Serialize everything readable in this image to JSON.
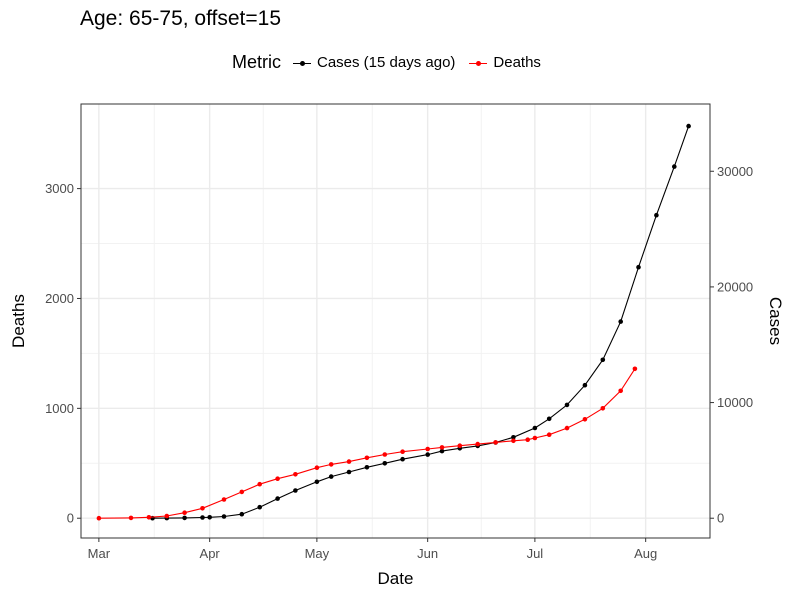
{
  "title": "Age: 65-75, offset=15",
  "legend": {
    "title": "Metric",
    "items": [
      {
        "label": "Cases (15 days ago)",
        "color": "#000000"
      },
      {
        "label": "Deaths",
        "color": "#ff0000"
      }
    ]
  },
  "chart_data": {
    "type": "line",
    "xlabel": "Date",
    "ylabel": "Deaths",
    "y2label": "Cases",
    "x_ticks": [
      "Mar",
      "Apr",
      "May",
      "Jun",
      "Jul",
      "Aug"
    ],
    "x_tick_dates": [
      "2020-03-01",
      "2020-04-01",
      "2020-05-01",
      "2020-06-01",
      "2020-07-01",
      "2020-08-01"
    ],
    "xlim": [
      "2020-02-25",
      "2020-08-19"
    ],
    "y_ticks": [
      "0",
      "1000",
      "2000",
      "3000"
    ],
    "ylim": [
      -180,
      3770
    ],
    "y2_ticks": [
      "0",
      "10000",
      "20000",
      "30000"
    ],
    "y2_per_y": 9.5,
    "grid": true,
    "legend_position": "top",
    "series": [
      {
        "name": "Cases (15 days ago)",
        "axis": "right",
        "color": "#000000",
        "points": [
          [
            "2020-03-16",
            0
          ],
          [
            "2020-03-20",
            10
          ],
          [
            "2020-03-25",
            30
          ],
          [
            "2020-03-30",
            60
          ],
          [
            "2020-04-01",
            80
          ],
          [
            "2020-04-05",
            150
          ],
          [
            "2020-04-10",
            350
          ],
          [
            "2020-04-15",
            950
          ],
          [
            "2020-04-20",
            1700
          ],
          [
            "2020-04-25",
            2400
          ],
          [
            "2020-05-01",
            3150
          ],
          [
            "2020-05-05",
            3600
          ],
          [
            "2020-05-10",
            4000
          ],
          [
            "2020-05-15",
            4400
          ],
          [
            "2020-05-20",
            4750
          ],
          [
            "2020-05-25",
            5100
          ],
          [
            "2020-06-01",
            5500
          ],
          [
            "2020-06-05",
            5800
          ],
          [
            "2020-06-10",
            6050
          ],
          [
            "2020-06-15",
            6250
          ],
          [
            "2020-06-20",
            6550
          ],
          [
            "2020-06-25",
            7000
          ],
          [
            "2020-07-01",
            7800
          ],
          [
            "2020-07-05",
            8600
          ],
          [
            "2020-07-10",
            9800
          ],
          [
            "2020-07-15",
            11500
          ],
          [
            "2020-07-20",
            13700
          ],
          [
            "2020-07-25",
            17000
          ],
          [
            "2020-07-30",
            21700
          ],
          [
            "2020-08-04",
            26200
          ],
          [
            "2020-08-09",
            30400
          ],
          [
            "2020-08-13",
            33900
          ]
        ]
      },
      {
        "name": "Deaths",
        "axis": "left",
        "color": "#ff0000",
        "points": [
          [
            "2020-03-01",
            0
          ],
          [
            "2020-03-10",
            3
          ],
          [
            "2020-03-15",
            8
          ],
          [
            "2020-03-20",
            20
          ],
          [
            "2020-03-25",
            50
          ],
          [
            "2020-03-30",
            90
          ],
          [
            "2020-04-05",
            170
          ],
          [
            "2020-04-10",
            240
          ],
          [
            "2020-04-15",
            310
          ],
          [
            "2020-04-20",
            360
          ],
          [
            "2020-04-25",
            400
          ],
          [
            "2020-05-01",
            460
          ],
          [
            "2020-05-05",
            490
          ],
          [
            "2020-05-10",
            515
          ],
          [
            "2020-05-15",
            550
          ],
          [
            "2020-05-20",
            580
          ],
          [
            "2020-05-25",
            605
          ],
          [
            "2020-06-01",
            630
          ],
          [
            "2020-06-05",
            645
          ],
          [
            "2020-06-10",
            660
          ],
          [
            "2020-06-15",
            675
          ],
          [
            "2020-06-20",
            690
          ],
          [
            "2020-06-25",
            705
          ],
          [
            "2020-06-29",
            715
          ],
          [
            "2020-07-01",
            730
          ],
          [
            "2020-07-05",
            760
          ],
          [
            "2020-07-10",
            820
          ],
          [
            "2020-07-15",
            900
          ],
          [
            "2020-07-20",
            1000
          ],
          [
            "2020-07-25",
            1160
          ],
          [
            "2020-07-29",
            1360
          ]
        ]
      }
    ]
  }
}
